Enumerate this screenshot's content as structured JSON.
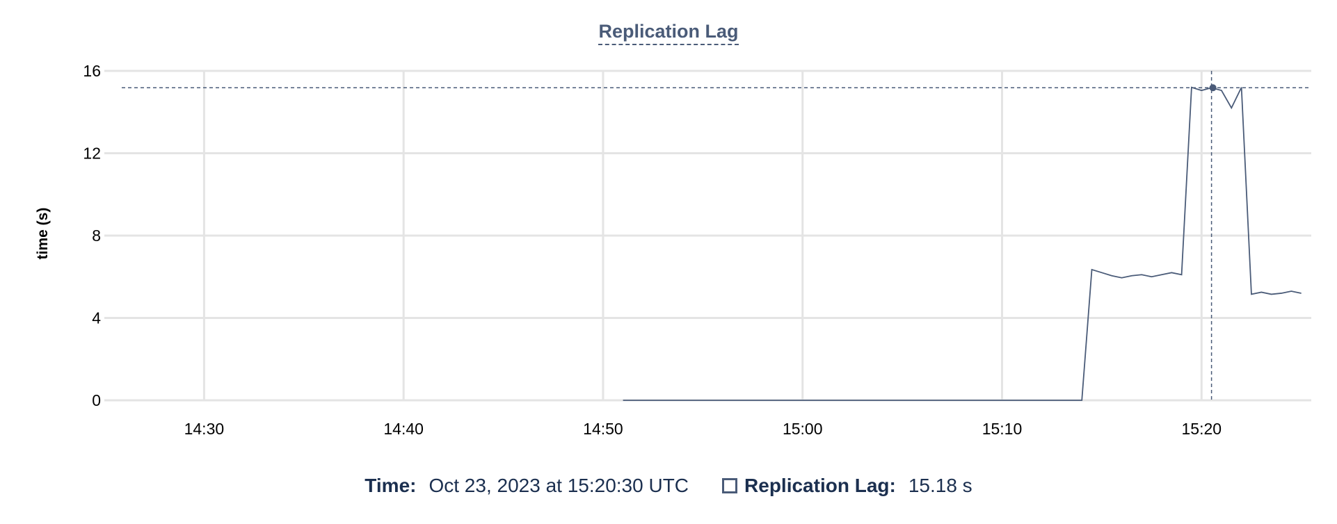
{
  "chart_data": {
    "type": "line",
    "title": "Replication Lag",
    "ylabel": "time (s)",
    "xlabel": "",
    "ylim": [
      0,
      16
    ],
    "yticks": [
      0,
      4,
      8,
      12,
      16
    ],
    "xlim": [
      "14:25:00",
      "15:25:30"
    ],
    "xticks": [
      "14:30",
      "14:40",
      "14:50",
      "15:00",
      "15:10",
      "15:20"
    ],
    "grid": true,
    "series": [
      {
        "name": "Replication Lag",
        "color": "#4a5b78",
        "x": [
          "14:51:00",
          "15:14:00",
          "15:14:30",
          "15:15:00",
          "15:15:30",
          "15:16:00",
          "15:16:30",
          "15:17:00",
          "15:17:30",
          "15:18:00",
          "15:18:30",
          "15:19:00",
          "15:19:30",
          "15:20:00",
          "15:20:30",
          "15:21:00",
          "15:21:30",
          "15:22:00",
          "15:22:30",
          "15:23:00",
          "15:23:30",
          "15:24:00",
          "15:24:30",
          "15:25:00"
        ],
        "values": [
          0,
          0,
          6.35,
          6.2,
          6.05,
          5.95,
          6.05,
          6.1,
          6.0,
          6.1,
          6.2,
          6.1,
          15.2,
          15.05,
          15.18,
          15.05,
          14.2,
          15.2,
          5.15,
          5.25,
          5.15,
          5.2,
          5.3,
          5.2
        ]
      }
    ],
    "crosshair": {
      "x": "15:20:30",
      "y": 15.18
    }
  },
  "legend": {
    "time_label": "Time:",
    "time_value": "Oct 23, 2023 at 15:20:30 UTC",
    "series_label": "Replication Lag:",
    "series_value": "15.18 s"
  }
}
